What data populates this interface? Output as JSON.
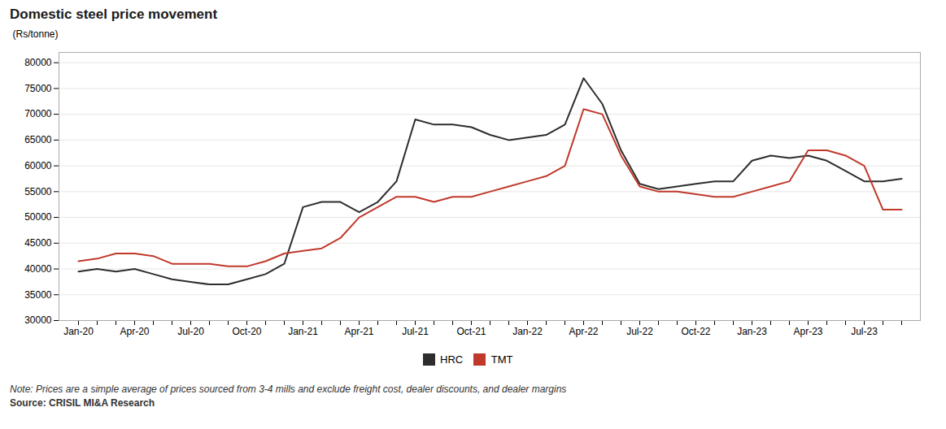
{
  "chart_data": {
    "type": "line",
    "title": "Domestic steel price movement",
    "ylabel": "(Rs/tonne)",
    "note": "Note: Prices are a simple average of prices sourced from 3-4 mills and exclude freight cost, dealer discounts, and dealer margins",
    "source": "Source: CRISIL MI&A Research",
    "categories": [
      "Jan-20",
      null,
      null,
      "Apr-20",
      null,
      null,
      "Jul-20",
      null,
      null,
      "Oct-20",
      null,
      null,
      "Jan-21",
      null,
      null,
      "Apr-21",
      null,
      null,
      "Jul-21",
      null,
      null,
      "Oct-21",
      null,
      null,
      "Jan-22",
      null,
      null,
      "Apr-22",
      null,
      null,
      "Jul-22",
      null,
      null,
      "Oct-22",
      null,
      null,
      "Jan-23",
      null,
      null,
      "Apr-23",
      null,
      null,
      "Jul-23",
      null,
      null
    ],
    "series": [
      {
        "name": "HRC",
        "color": "#2d2d2d",
        "values": [
          39500,
          40000,
          39500,
          40000,
          39000,
          38000,
          37500,
          37000,
          37000,
          38000,
          39000,
          41000,
          52000,
          53000,
          53000,
          51000,
          53000,
          57000,
          69000,
          68000,
          68000,
          67500,
          66000,
          65000,
          65500,
          66000,
          68000,
          77000,
          72000,
          63000,
          56500,
          55500,
          56000,
          56500,
          57000,
          57000,
          61000,
          62000,
          61500,
          62000,
          61000,
          59000,
          57000,
          57000,
          57500
        ]
      },
      {
        "name": "TMT",
        "color": "#c0392b",
        "values": [
          41500,
          42000,
          43000,
          43000,
          42500,
          41000,
          41000,
          41000,
          40500,
          40500,
          41500,
          43000,
          43500,
          44000,
          46000,
          50000,
          52000,
          54000,
          54000,
          53000,
          54000,
          54000,
          55000,
          56000,
          57000,
          58000,
          60000,
          71000,
          70000,
          62000,
          56000,
          55000,
          55000,
          54500,
          54000,
          54000,
          55000,
          56000,
          57000,
          63000,
          63000,
          62000,
          60000,
          51500,
          51500
        ]
      }
    ],
    "ylim": [
      30000,
      82000
    ],
    "yticks": [
      30000,
      35000,
      40000,
      45000,
      50000,
      55000,
      60000,
      65000,
      70000,
      75000,
      80000
    ],
    "grid": true,
    "legend": "bottom"
  }
}
